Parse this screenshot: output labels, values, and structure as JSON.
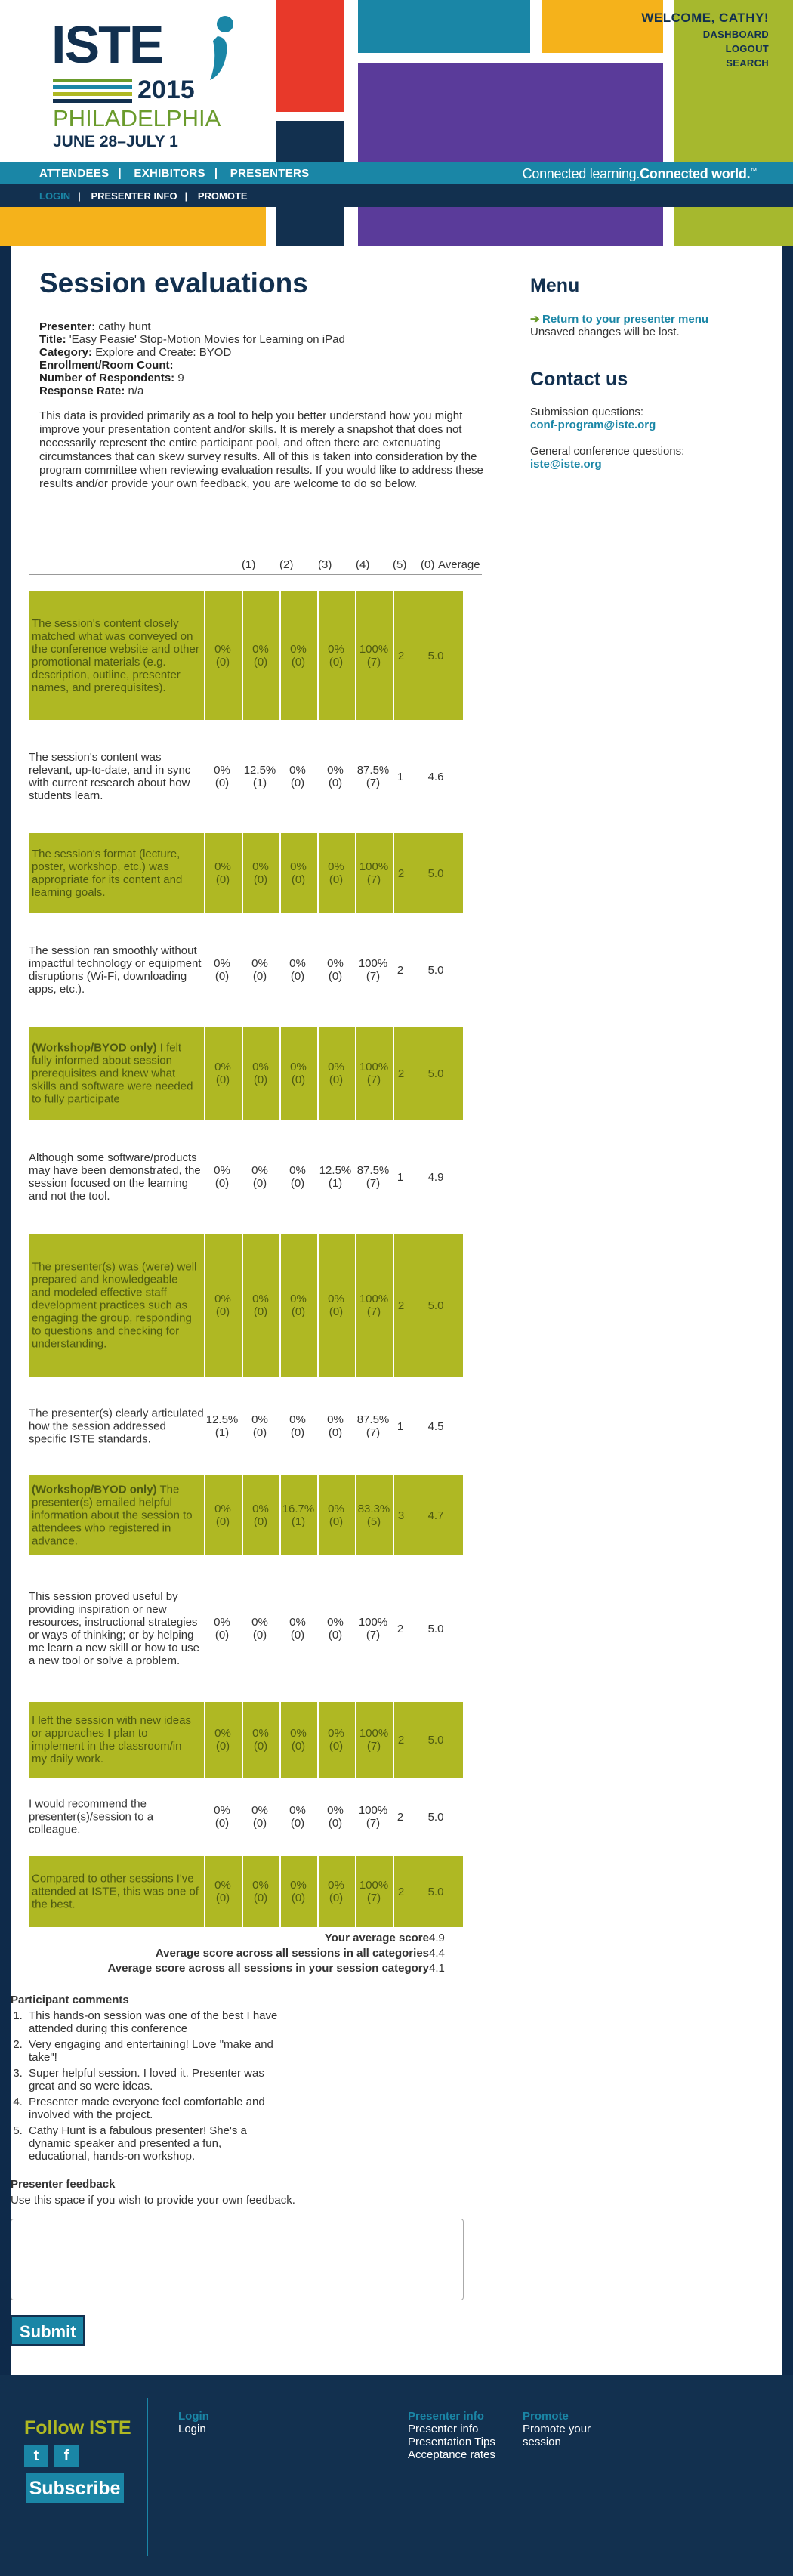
{
  "header": {
    "logo": {
      "text": "ISTE",
      "year": "2015",
      "city": "PHILADELPHIA",
      "dates": "JUNE 28–JULY 1"
    },
    "welcome": "WELCOME, CATHY!",
    "user_links": [
      "DASHBOARD",
      "LOGOUT",
      "SEARCH"
    ],
    "main_nav": [
      "ATTENDEES",
      "EXHIBITORS",
      "PRESENTERS"
    ],
    "tagline_regular": "Connected learning.",
    "tagline_bold": "Connected world.",
    "tagline_mark": "™",
    "sub_nav": [
      "LOGIN",
      "PRESENTER INFO",
      "PROMOTE"
    ],
    "nav_separator": "|"
  },
  "page": {
    "title": "Session evaluations",
    "presenter_label": "Presenter:",
    "presenter": "cathy hunt",
    "title_label": "Title:",
    "session_title": "'Easy Peasie' Stop-Motion Movies for Learning on iPad",
    "category_label": "Category:",
    "category": "Explore and Create: BYOD",
    "room_label": "Enrollment/Room Count:",
    "room": "",
    "respondents_label": "Number of Respondents:",
    "respondents": "9",
    "response_label": "Response Rate:",
    "response_rate": "n/a",
    "intro": "This data is provided primarily as a tool to help you better understand how you might improve your presentation content and/or skills. It is merely a snapshot that does not necessarily represent the entire participant pool, and often there are extenuating circumstances that can skew survey results. All of this is taken into consideration by the program committee when reviewing evaluation results. If you would like to address these results and/or provide your own feedback, you are welcome to do so below."
  },
  "table": {
    "headers": [
      "(1)",
      "(2)",
      "(3)",
      "(4)",
      "(5)",
      "(0)",
      "Average"
    ],
    "rows": [
      {
        "bold": "",
        "q": "The session's content closely matched what was conveyed on the conference website and other promotional materials (e.g. description, outline, presenter names, and prerequisites).",
        "cells": [
          "0%\n(0)",
          "0%\n(0)",
          "0%\n(0)",
          "0%\n(0)",
          "100%\n(7)"
        ],
        "zero": "2",
        "avg": "5.0"
      },
      {
        "bold": "",
        "q": "The session's content was relevant, up-to-date, and in sync with current research about how students learn.",
        "cells": [
          "0%\n(0)",
          "12.5%\n(1)",
          "0%\n(0)",
          "0%\n(0)",
          "87.5%\n(7)"
        ],
        "zero": "1",
        "avg": "4.6"
      },
      {
        "bold": "",
        "q": "The session's format (lecture, poster, workshop, etc.) was appropriate for its content and learning goals.",
        "cells": [
          "0%\n(0)",
          "0%\n(0)",
          "0%\n(0)",
          "0%\n(0)",
          "100%\n(7)"
        ],
        "zero": "2",
        "avg": "5.0"
      },
      {
        "bold": "",
        "q": "The session ran smoothly without impactful technology or equipment disruptions (Wi-Fi, downloading apps, etc.).",
        "cells": [
          "0%\n(0)",
          "0%\n(0)",
          "0%\n(0)",
          "0%\n(0)",
          "100%\n(7)"
        ],
        "zero": "2",
        "avg": "5.0"
      },
      {
        "bold": "(Workshop/BYOD only)",
        "q": " I felt fully informed about session prerequisites and knew what skills and software were needed to fully participate",
        "cells": [
          "0%\n(0)",
          "0%\n(0)",
          "0%\n(0)",
          "0%\n(0)",
          "100%\n(7)"
        ],
        "zero": "2",
        "avg": "5.0"
      },
      {
        "bold": "",
        "q": "Although some software/products may have been demonstrated, the session focused on the learning and not the tool.",
        "cells": [
          "0%\n(0)",
          "0%\n(0)",
          "0%\n(0)",
          "12.5%\n(1)",
          "87.5%\n(7)"
        ],
        "zero": "1",
        "avg": "4.9"
      },
      {
        "bold": "",
        "q": "The presenter(s) was (were) well prepared and knowledgeable and modeled effective staff development practices such as engaging the group, responding to questions and checking for understanding.",
        "cells": [
          "0%\n(0)",
          "0%\n(0)",
          "0%\n(0)",
          "0%\n(0)",
          "100%\n(7)"
        ],
        "zero": "2",
        "avg": "5.0"
      },
      {
        "bold": "",
        "q": "The presenter(s) clearly articulated how the session addressed specific ISTE standards.",
        "cells": [
          "12.5%\n(1)",
          "0%\n(0)",
          "0%\n(0)",
          "0%\n(0)",
          "87.5%\n(7)"
        ],
        "zero": "1",
        "avg": "4.5"
      },
      {
        "bold": "(Workshop/BYOD only)",
        "q": " The presenter(s) emailed helpful information about the session to attendees who registered in advance.",
        "cells": [
          "0%\n(0)",
          "0%\n(0)",
          "16.7%\n(1)",
          "0%\n(0)",
          "83.3%\n(5)"
        ],
        "zero": "3",
        "avg": "4.7"
      },
      {
        "bold": "",
        "q": "This session proved useful by providing inspiration or new resources, instructional strategies or ways of thinking; or by helping me learn a new skill or how to use a new tool or solve a problem.",
        "cells": [
          "0%\n(0)",
          "0%\n(0)",
          "0%\n(0)",
          "0%\n(0)",
          "100%\n(7)"
        ],
        "zero": "2",
        "avg": "5.0"
      },
      {
        "bold": "",
        "q": "I left the session with new ideas or approaches I plan to implement in the classroom/in my daily work.",
        "cells": [
          "0%\n(0)",
          "0%\n(0)",
          "0%\n(0)",
          "0%\n(0)",
          "100%\n(7)"
        ],
        "zero": "2",
        "avg": "5.0"
      },
      {
        "bold": "",
        "q": "I would recommend the presenter(s)/session to a colleague.",
        "cells": [
          "0%\n(0)",
          "0%\n(0)",
          "0%\n(0)",
          "0%\n(0)",
          "100%\n(7)"
        ],
        "zero": "2",
        "avg": "5.0"
      },
      {
        "bold": "",
        "q": "Compared to other sessions I've attended at ISTE, this was one of the best.",
        "cells": [
          "0%\n(0)",
          "0%\n(0)",
          "0%\n(0)",
          "0%\n(0)",
          "100%\n(7)"
        ],
        "zero": "2",
        "avg": "5.0"
      }
    ]
  },
  "summary": [
    {
      "label": "Your average score",
      "value": "4.9"
    },
    {
      "label": "Average score across all sessions in all categories",
      "value": "4.4"
    },
    {
      "label": "Average score across all sessions in your session category",
      "value": "4.1"
    }
  ],
  "comments": {
    "heading": "Participant comments",
    "items": [
      "This hands-on session was one of the best I have attended during this conference",
      "Very engaging and entertaining! Love \"make and take\"!",
      "Super helpful session. I loved it. Presenter was great and so were ideas.",
      "Presenter made everyone feel comfortable and involved with the project.",
      "Cathy Hunt is a fabulous presenter! She's a dynamic speaker and presented a fun, educational, hands-on workshop."
    ]
  },
  "feedback": {
    "heading": "Presenter feedback",
    "help": "Use this space if you wish to provide your own feedback.",
    "value": "",
    "submit": "Submit"
  },
  "sidebar": {
    "menu_heading": "Menu",
    "menu_link": "Return to your presenter menu",
    "menu_note": "Unsaved changes will be lost.",
    "contact_heading": "Contact us",
    "submission_label": "Submission questions:",
    "submission_email": "conf-program@iste.org",
    "general_label": "General conference questions:",
    "general_email": "iste@iste.org"
  },
  "footer": {
    "follow": "Follow ISTE",
    "twitter": "t",
    "facebook": "f",
    "subscribe": "Subscribe",
    "col1_head": "Login",
    "col1_items": [
      "Login"
    ],
    "col2_head": "Presenter info",
    "col2_items": [
      "Presenter info",
      "Presentation Tips",
      "Acceptance rates"
    ],
    "col3_head": "Promote",
    "col3_items": [
      "Promote your",
      "session"
    ]
  },
  "colors": {
    "navy": "#12304f",
    "teal": "#1a86a6",
    "olive": "#afb823",
    "red": "#e8392a",
    "yellow": "#f5b21b",
    "purple": "#5a3b9a",
    "lime": "#a6b82e"
  }
}
